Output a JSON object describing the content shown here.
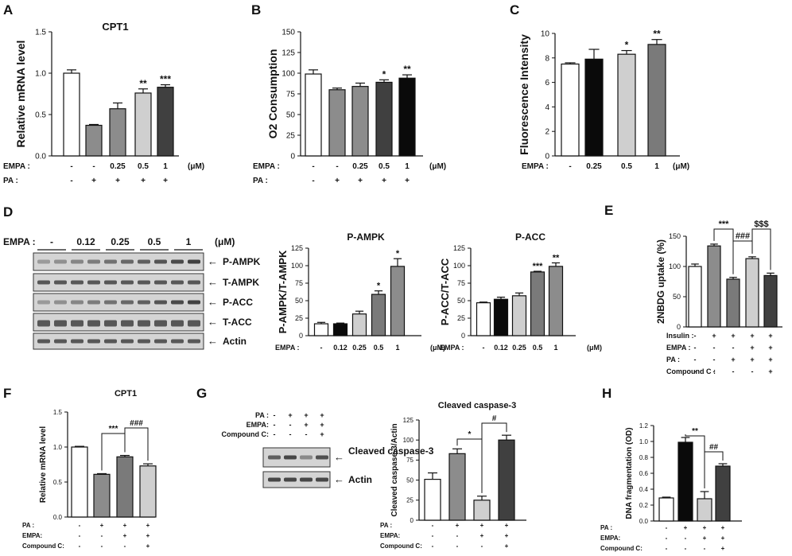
{
  "colors": {
    "white": "#ffffff",
    "gray": "#8c8c8c",
    "light": "#cfcfcf",
    "dark": "#404040",
    "black": "#0a0a0a",
    "mid": "#7a7a7a",
    "blot_bg": "#d4d4d4",
    "band": "#2e2e2e"
  },
  "chart_data": [
    {
      "id": "A",
      "panel_label": "A",
      "type": "bar",
      "title": "CPT1",
      "ylabel": "Relative mRNA level",
      "ylim": [
        0,
        1.5
      ],
      "ticks": [
        "0.0",
        "0.5",
        "1.0",
        "1.5"
      ],
      "values": [
        1.0,
        0.37,
        0.57,
        0.76,
        0.83
      ],
      "errors": [
        0.04,
        0.01,
        0.07,
        0.05,
        0.03
      ],
      "fills": [
        "white",
        "gray",
        "gray",
        "light",
        "dark"
      ],
      "sig": [
        "",
        "",
        "",
        "**",
        "***"
      ],
      "bracket_labels": [],
      "conditions": [
        {
          "label": "EMPA :",
          "values": [
            "-",
            "-",
            "0.25",
            "0.5",
            "1"
          ],
          "unit": "(μM)"
        },
        {
          "label": "PA :",
          "values": [
            "-",
            "+",
            "+",
            "+",
            "+"
          ]
        }
      ]
    },
    {
      "id": "B",
      "panel_label": "B",
      "type": "bar",
      "title": "",
      "ylabel": "O2 Consumption",
      "ylim": [
        0,
        150
      ],
      "ticks": [
        "0",
        "25",
        "50",
        "75",
        "100",
        "125",
        "150"
      ],
      "values": [
        99,
        80,
        84,
        89,
        94
      ],
      "errors": [
        5,
        2,
        4,
        3,
        4
      ],
      "fills": [
        "white",
        "gray",
        "gray",
        "dark",
        "black"
      ],
      "sig": [
        "",
        "",
        "",
        "*",
        "**"
      ],
      "bracket_labels": [],
      "conditions": [
        {
          "label": "EMPA :",
          "values": [
            "-",
            "-",
            "0.25",
            "0.5",
            "1"
          ],
          "unit": "(μM)"
        },
        {
          "label": "PA :",
          "values": [
            "-",
            "+",
            "+",
            "+",
            "+"
          ]
        }
      ]
    },
    {
      "id": "C",
      "panel_label": "C",
      "type": "bar",
      "title": "",
      "ylabel": "Fluorescence Intensity",
      "ylim": [
        0,
        10
      ],
      "ticks": [
        "0",
        "2",
        "4",
        "6",
        "8",
        "10"
      ],
      "values": [
        7.5,
        7.9,
        8.3,
        9.1
      ],
      "errors": [
        0.1,
        0.8,
        0.3,
        0.4
      ],
      "fills": [
        "white",
        "black",
        "light",
        "mid"
      ],
      "sig": [
        "",
        "",
        "*",
        "**"
      ],
      "bracket_labels": [],
      "conditions": [
        {
          "label": "EMPA :",
          "values": [
            "-",
            "0.25",
            "0.5",
            "1"
          ],
          "unit": "(μM)"
        }
      ]
    },
    {
      "id": "D1",
      "panel_label": "",
      "type": "bar",
      "title": "P-AMPK",
      "ylabel": "P-AMPK/T-AMPK",
      "ylim": [
        0,
        125
      ],
      "ticks": [
        "0",
        "25",
        "50",
        "75",
        "100",
        "125"
      ],
      "values": [
        17,
        17,
        31,
        59,
        99
      ],
      "errors": [
        2,
        1,
        4,
        5,
        11
      ],
      "fills": [
        "white",
        "black",
        "light",
        "mid",
        "gray"
      ],
      "sig": [
        "",
        "",
        "",
        "*",
        "*"
      ],
      "bracket_labels": [],
      "conditions": [
        {
          "label": "EMPA :",
          "values": [
            "-",
            "0.12",
            "0.25",
            "0.5",
            "1"
          ],
          "unit": "(μM)"
        }
      ]
    },
    {
      "id": "D2",
      "panel_label": "",
      "type": "bar",
      "title": "P-ACC",
      "ylabel": "P-ACC/T-ACC",
      "ylim": [
        0,
        125
      ],
      "ticks": [
        "0",
        "25",
        "50",
        "75",
        "100",
        "125"
      ],
      "values": [
        47,
        52,
        57,
        91,
        99
      ],
      "errors": [
        1,
        3,
        4,
        1,
        5
      ],
      "fills": [
        "white",
        "black",
        "light",
        "mid",
        "gray"
      ],
      "sig": [
        "",
        "",
        "",
        "***",
        "**"
      ],
      "bracket_labels": [],
      "conditions": [
        {
          "label": "EMPA :",
          "values": [
            "-",
            "0.12",
            "0.25",
            "0.5",
            "1"
          ],
          "unit": "(μM)"
        }
      ]
    },
    {
      "id": "E",
      "panel_label": "E",
      "type": "bar",
      "title": "",
      "ylabel": "2NBDG uptake (%)",
      "ylim": [
        0,
        150
      ],
      "ticks": [
        "0",
        "50",
        "100",
        "150"
      ],
      "values": [
        100,
        134,
        79,
        113,
        85
      ],
      "errors": [
        4,
        3,
        3,
        3,
        4
      ],
      "fills": [
        "white",
        "gray",
        "mid",
        "light",
        "dark"
      ],
      "sig": [
        "",
        "",
        "",
        "",
        ""
      ],
      "bracket_labels": [
        "***",
        "###",
        "$$$"
      ],
      "conditions": [
        {
          "label": "Insulin :",
          "values": [
            "-",
            "+",
            "+",
            "+",
            "+"
          ]
        },
        {
          "label": "EMPA :",
          "values": [
            "-",
            "-",
            "-",
            "+",
            "+"
          ]
        },
        {
          "label": "PA :",
          "values": [
            "-",
            "-",
            "+",
            "+",
            "+"
          ]
        },
        {
          "label": "Compound C :",
          "values": [
            "-",
            "-",
            "-",
            "-",
            "+"
          ]
        }
      ]
    },
    {
      "id": "F",
      "panel_label": "F",
      "type": "bar",
      "title": "CPT1",
      "ylabel": "Relative mRNA level",
      "ylim": [
        0,
        1.5
      ],
      "ticks": [
        "0.0",
        "0.5",
        "1.0",
        "1.5"
      ],
      "values": [
        1.0,
        0.61,
        0.86,
        0.73
      ],
      "errors": [
        0.01,
        0.01,
        0.02,
        0.03
      ],
      "fills": [
        "white",
        "gray",
        "mid",
        "light"
      ],
      "sig": [
        "",
        "",
        "",
        ""
      ],
      "bracket_labels": [
        "***",
        "###"
      ],
      "conditions": [
        {
          "label": "PA :",
          "values": [
            "-",
            "+",
            "+",
            "+"
          ]
        },
        {
          "label": "EMPA:",
          "values": [
            "-",
            "-",
            "+",
            "+"
          ]
        },
        {
          "label": "Compound C:",
          "values": [
            "-",
            "-",
            "-",
            "+"
          ]
        }
      ]
    },
    {
      "id": "G",
      "panel_label": "",
      "type": "bar",
      "title": "Cleaved caspase-3",
      "ylabel": "Cleaved caspase-3/Actin",
      "ylim": [
        0,
        125
      ],
      "ticks": [
        "0",
        "25",
        "50",
        "75",
        "100",
        "125"
      ],
      "values": [
        51,
        83,
        25,
        100
      ],
      "errors": [
        8,
        6,
        5,
        6
      ],
      "fills": [
        "white",
        "gray",
        "light",
        "dark"
      ],
      "sig": [
        "",
        "",
        "",
        ""
      ],
      "bracket_labels": [
        "*",
        "#"
      ],
      "conditions": [
        {
          "label": "PA :",
          "values": [
            "-",
            "+",
            "+",
            "+"
          ]
        },
        {
          "label": "EMPA:",
          "values": [
            "-",
            "-",
            "+",
            "+"
          ]
        },
        {
          "label": "Compound C:",
          "values": [
            "-",
            "-",
            "-",
            "+"
          ]
        }
      ]
    },
    {
      "id": "H",
      "panel_label": "H",
      "type": "bar",
      "title": "",
      "ylabel": "DNA fragmentation (OD)",
      "ylim": [
        0,
        1.2
      ],
      "ticks": [
        "0.0",
        "0.2",
        "0.4",
        "0.6",
        "0.8",
        "1.0",
        "1.2"
      ],
      "values": [
        0.29,
        0.99,
        0.28,
        0.69
      ],
      "errors": [
        0.01,
        0.06,
        0.09,
        0.03
      ],
      "fills": [
        "white",
        "black",
        "light",
        "dark"
      ],
      "sig": [
        "",
        "",
        "",
        ""
      ],
      "bracket_labels": [
        "**",
        "##"
      ],
      "conditions": [
        {
          "label": "PA :",
          "values": [
            "-",
            "+",
            "+",
            "+"
          ]
        },
        {
          "label": "EMPA:",
          "values": [
            "-",
            "-",
            "+",
            "+"
          ]
        },
        {
          "label": "Compound C:",
          "values": [
            "-",
            "-",
            "-",
            "+"
          ]
        }
      ]
    }
  ],
  "blot_D": {
    "panel_label": "D",
    "header_label": "EMPA :",
    "header_values": [
      "-",
      "0.12",
      "0.25",
      "0.5",
      "1"
    ],
    "unit": "(μM)",
    "bands": [
      "P-AMPK",
      "T-AMPK",
      "P-ACC",
      "T-ACC",
      "Actin"
    ],
    "arrow": "←"
  },
  "blot_G": {
    "panel_label": "G",
    "conditions": [
      {
        "label": "PA :",
        "values": [
          "-",
          "+",
          "+",
          "+"
        ]
      },
      {
        "label": "EMPA:",
        "values": [
          "-",
          "-",
          "+",
          "+"
        ]
      },
      {
        "label": "Compound C:",
        "values": [
          "-",
          "-",
          "-",
          "+"
        ]
      }
    ],
    "bands": [
      "Cleaved caspase-3",
      "Actin"
    ],
    "arrow": "←"
  }
}
